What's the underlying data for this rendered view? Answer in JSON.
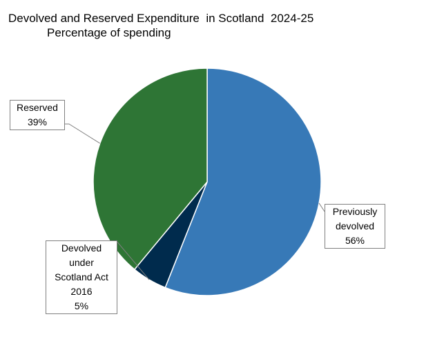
{
  "title": "Devolved and Reserved Expenditure  in Scotland  2024-25",
  "subtitle": "Percentage of spending",
  "chart_data": {
    "type": "pie",
    "title": "Devolved and Reserved Expenditure  in Scotland  2024-25",
    "subtitle": "Percentage of spending",
    "slices": [
      {
        "label": "Previously devolved",
        "value": 56,
        "value_label": "56%",
        "color": "#3779b7"
      },
      {
        "label": "Devolved under Scotland Act 2016",
        "value": 5,
        "value_label": "5%",
        "color": "#002b4d"
      },
      {
        "label": "Reserved",
        "value": 39,
        "value_label": "39%",
        "color": "#2e7535"
      }
    ],
    "labels": {
      "previously_devolved": [
        "Previously",
        "devolved",
        "56%"
      ],
      "scotland_act": [
        "Devolved",
        "under",
        "Scotland Act",
        "2016",
        "5%"
      ],
      "reserved": [
        "Reserved",
        "39%"
      ]
    }
  }
}
